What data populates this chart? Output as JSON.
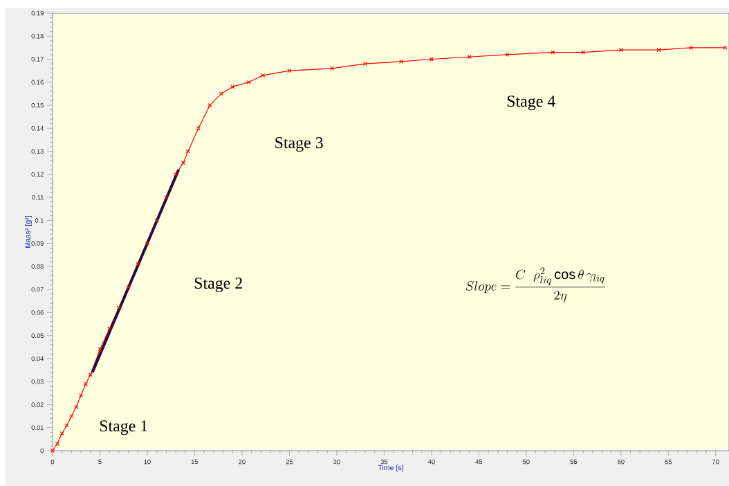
{
  "chart_data": {
    "type": "line",
    "xlabel": "Time [s]",
    "ylabel": "Mass² [g²]",
    "xlim": [
      0,
      71.4
    ],
    "ylim": [
      0,
      0.19
    ],
    "xticks": [
      0,
      5,
      10,
      15,
      20,
      25,
      30,
      35,
      40,
      45,
      50,
      55,
      60,
      65,
      70
    ],
    "yticks": [
      0,
      0.01,
      0.02,
      0.03,
      0.04,
      0.05,
      0.06,
      0.07,
      0.08,
      0.09,
      0.1,
      0.11,
      0.12,
      0.13,
      0.14,
      0.15,
      0.16,
      0.17,
      0.18,
      0.19
    ],
    "grid": false,
    "series": [
      {
        "color": "#ff0000",
        "marker": "cross",
        "line_style": "solid",
        "x": [
          0,
          0.5,
          1,
          1.5,
          2,
          2.5,
          3,
          3.5,
          4,
          5,
          6,
          7,
          8,
          9,
          10,
          11,
          12,
          13,
          13.8,
          14.3,
          15.4,
          16.6,
          17.8,
          19,
          20.7,
          22.2,
          25,
          29.5,
          33,
          36.8,
          40,
          44,
          48,
          52.8,
          56,
          60,
          64,
          67.4,
          71
        ],
        "values": [
          0,
          0.003,
          0.0075,
          0.011,
          0.015,
          0.019,
          0.024,
          0.029,
          0.033,
          0.044,
          0.053,
          0.062,
          0.071,
          0.081,
          0.09,
          0.1,
          0.11,
          0.12,
          0.125,
          0.13,
          0.14,
          0.15,
          0.155,
          0.158,
          0.16,
          0.163,
          0.165,
          0.166,
          0.168,
          0.169,
          0.17,
          0.171,
          0.172,
          0.173,
          0.173,
          0.174,
          0.174,
          0.175,
          0.175
        ]
      },
      {
        "color": "#2d0a3c",
        "marker": "none",
        "line_style": "solid",
        "x": [
          4.2,
          13.3
        ],
        "values": [
          0.034,
          0.122
        ]
      }
    ],
    "annotations": [
      "Stage 1",
      "Stage 2",
      "Stage 3",
      "Stage 4",
      "Slope = \\frac{C\\ \\ \\rho_{liq}^{2}\\cos\\theta\\,\\gamma_{liq}}{2\\eta}"
    ]
  }
}
